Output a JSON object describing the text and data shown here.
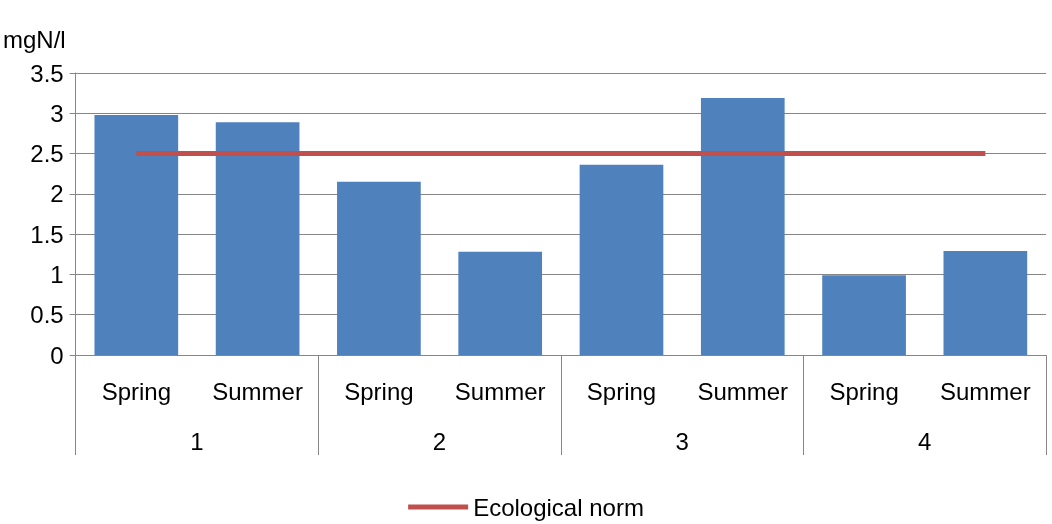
{
  "chart_data": {
    "type": "bar",
    "ylabel": "mgN/l",
    "categories": [
      "Spring",
      "Summer",
      "Spring",
      "Summer",
      "Spring",
      "Summer",
      "Spring",
      "Summer"
    ],
    "annotations": [
      "1",
      "2",
      "3",
      "4"
    ],
    "series": [
      {
        "color": "#4f81bd",
        "values": [
          2.98,
          2.89,
          2.15,
          1.28,
          2.36,
          3.19,
          0.99,
          1.29
        ]
      },
      {
        "type": "line",
        "name": "Ecological norm",
        "color": "#c0504d",
        "marker": "none",
        "values": [
          2.5,
          2.5,
          2.5,
          2.5,
          2.5,
          2.5,
          2.5,
          2.5
        ]
      }
    ],
    "ylim": [
      0,
      3.5
    ],
    "yticks": [
      0,
      0.5,
      1,
      1.5,
      2,
      2.5,
      3,
      3.5
    ],
    "grid": "y",
    "legend": "bottom"
  }
}
